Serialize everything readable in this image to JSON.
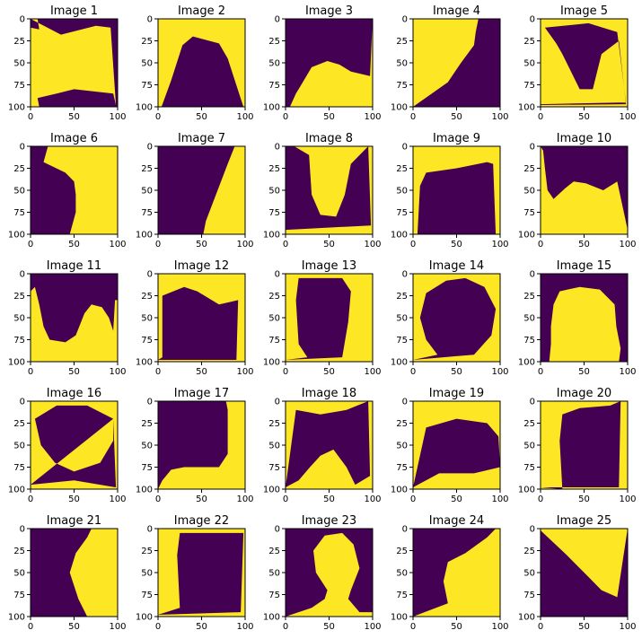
{
  "colors": {
    "low": "#440154",
    "high": "#fde725",
    "axis": "#000000",
    "background": "#ffffff"
  },
  "chart_data": {
    "type": "image-grid",
    "colormap": "viridis",
    "rows": 5,
    "cols": 5,
    "xlim": [
      0,
      100
    ],
    "ylim": [
      100,
      0
    ],
    "xticks": [
      0,
      50,
      100
    ],
    "yticks": [
      0,
      25,
      50,
      75,
      100
    ],
    "grid": false,
    "panels": [
      {
        "title": "Image 1",
        "yellow": [
          [
            0,
            0
          ],
          [
            8,
            0
          ],
          [
            10,
            12
          ],
          [
            0,
            10
          ],
          [
            0,
            100
          ],
          [
            10,
            100
          ],
          [
            8,
            90
          ],
          [
            30,
            85
          ],
          [
            50,
            80
          ],
          [
            95,
            85
          ],
          [
            98,
            98
          ],
          [
            92,
            10
          ],
          [
            75,
            8
          ],
          [
            35,
            18
          ]
        ]
      },
      {
        "title": "Image 2",
        "yellow": [
          [
            0,
            0
          ],
          [
            100,
            0
          ],
          [
            100,
            100
          ],
          [
            98,
            100
          ],
          [
            80,
            45
          ],
          [
            70,
            28
          ],
          [
            40,
            20
          ],
          [
            28,
            30
          ],
          [
            15,
            70
          ],
          [
            4,
            100
          ],
          [
            0,
            100
          ]
        ]
      },
      {
        "title": "Image 3",
        "yellow": [
          [
            5,
            100
          ],
          [
            12,
            85
          ],
          [
            18,
            75
          ],
          [
            30,
            55
          ],
          [
            48,
            48
          ],
          [
            62,
            52
          ],
          [
            75,
            60
          ],
          [
            97,
            65
          ],
          [
            100,
            0
          ],
          [
            100,
            100
          ]
        ]
      },
      {
        "title": "Image 4",
        "yellow": [
          [
            0,
            0
          ],
          [
            75,
            0
          ],
          [
            72,
            15
          ],
          [
            70,
            30
          ],
          [
            55,
            50
          ],
          [
            40,
            72
          ],
          [
            0,
            100
          ]
        ]
      },
      {
        "title": "Image 5",
        "yellow": [
          [
            0,
            0
          ],
          [
            100,
            0
          ],
          [
            100,
            100
          ],
          [
            0,
            100
          ],
          [
            0,
            97
          ],
          [
            98,
            95
          ],
          [
            88,
            15
          ],
          [
            55,
            5
          ],
          [
            5,
            10
          ],
          [
            18,
            28
          ],
          [
            25,
            40
          ],
          [
            45,
            80
          ],
          [
            60,
            80
          ],
          [
            70,
            40
          ],
          [
            90,
            25
          ],
          [
            98,
            97
          ],
          [
            0,
            98
          ]
        ]
      },
      {
        "title": "Image 6",
        "yellow": [
          [
            0,
            0
          ],
          [
            100,
            0
          ],
          [
            100,
            100
          ],
          [
            45,
            100
          ],
          [
            52,
            75
          ],
          [
            52,
            55
          ],
          [
            50,
            40
          ],
          [
            40,
            30
          ],
          [
            15,
            18
          ],
          [
            20,
            0
          ]
        ]
      },
      {
        "title": "Image 7",
        "yellow": [
          [
            100,
            0
          ],
          [
            100,
            100
          ],
          [
            52,
            100
          ],
          [
            55,
            85
          ],
          [
            80,
            20
          ],
          [
            88,
            0
          ]
        ]
      },
      {
        "title": "Image 8",
        "yellow": [
          [
            0,
            0
          ],
          [
            100,
            0
          ],
          [
            100,
            100
          ],
          [
            0,
            100
          ],
          [
            0,
            95
          ],
          [
            98,
            90
          ],
          [
            95,
            0
          ],
          [
            75,
            20
          ],
          [
            68,
            55
          ],
          [
            58,
            80
          ],
          [
            40,
            78
          ],
          [
            30,
            55
          ],
          [
            27,
            10
          ],
          [
            10,
            0
          ]
        ]
      },
      {
        "title": "Image 9",
        "yellow": [
          [
            0,
            0
          ],
          [
            100,
            0
          ],
          [
            100,
            100
          ],
          [
            95,
            100
          ],
          [
            92,
            20
          ],
          [
            85,
            18
          ],
          [
            50,
            25
          ],
          [
            15,
            30
          ],
          [
            8,
            45
          ],
          [
            5,
            100
          ],
          [
            0,
            100
          ]
        ]
      },
      {
        "title": "Image 10",
        "yellow": [
          [
            0,
            0
          ],
          [
            3,
            5
          ],
          [
            5,
            25
          ],
          [
            8,
            50
          ],
          [
            15,
            60
          ],
          [
            28,
            48
          ],
          [
            38,
            40
          ],
          [
            52,
            42
          ],
          [
            72,
            50
          ],
          [
            88,
            40
          ],
          [
            100,
            95
          ],
          [
            100,
            100
          ],
          [
            0,
            100
          ]
        ]
      },
      {
        "title": "Image 11",
        "yellow": [
          [
            0,
            100
          ],
          [
            0,
            20
          ],
          [
            5,
            15
          ],
          [
            10,
            35
          ],
          [
            15,
            60
          ],
          [
            22,
            75
          ],
          [
            40,
            78
          ],
          [
            52,
            70
          ],
          [
            62,
            45
          ],
          [
            70,
            35
          ],
          [
            82,
            38
          ],
          [
            90,
            50
          ],
          [
            95,
            65
          ],
          [
            97,
            30
          ],
          [
            100,
            30
          ],
          [
            100,
            100
          ]
        ]
      },
      {
        "title": "Image 12",
        "yellow": [
          [
            0,
            0
          ],
          [
            100,
            0
          ],
          [
            100,
            100
          ],
          [
            0,
            100
          ],
          [
            0,
            98
          ],
          [
            90,
            98
          ],
          [
            92,
            30
          ],
          [
            70,
            35
          ],
          [
            45,
            20
          ],
          [
            30,
            15
          ],
          [
            5,
            25
          ],
          [
            5,
            95
          ],
          [
            0,
            98
          ]
        ]
      },
      {
        "title": "Image 13",
        "yellow": [
          [
            0,
            0
          ],
          [
            100,
            0
          ],
          [
            100,
            100
          ],
          [
            0,
            100
          ],
          [
            0,
            98
          ],
          [
            65,
            95
          ],
          [
            72,
            55
          ],
          [
            75,
            20
          ],
          [
            65,
            5
          ],
          [
            15,
            5
          ],
          [
            12,
            30
          ],
          [
            15,
            80
          ],
          [
            25,
            95
          ],
          [
            0,
            98
          ]
        ]
      },
      {
        "title": "Image 14",
        "yellow": [
          [
            0,
            0
          ],
          [
            100,
            0
          ],
          [
            100,
            100
          ],
          [
            0,
            100
          ],
          [
            0,
            98
          ],
          [
            35,
            95
          ],
          [
            70,
            92
          ],
          [
            90,
            70
          ],
          [
            95,
            40
          ],
          [
            82,
            15
          ],
          [
            60,
            5
          ],
          [
            38,
            8
          ],
          [
            15,
            22
          ],
          [
            8,
            50
          ],
          [
            15,
            75
          ],
          [
            28,
            92
          ],
          [
            0,
            98
          ]
        ]
      },
      {
        "title": "Image 15",
        "yellow": [
          [
            10,
            100
          ],
          [
            12,
            80
          ],
          [
            12,
            60
          ],
          [
            15,
            35
          ],
          [
            22,
            20
          ],
          [
            45,
            15
          ],
          [
            68,
            18
          ],
          [
            85,
            35
          ],
          [
            87,
            60
          ],
          [
            92,
            85
          ],
          [
            90,
            100
          ]
        ]
      },
      {
        "title": "Image 16",
        "yellow": [
          [
            0,
            0
          ],
          [
            100,
            0
          ],
          [
            100,
            100
          ],
          [
            0,
            100
          ],
          [
            0,
            95
          ],
          [
            50,
            90
          ],
          [
            98,
            98
          ],
          [
            95,
            20
          ],
          [
            65,
            5
          ],
          [
            30,
            5
          ],
          [
            5,
            20
          ],
          [
            12,
            50
          ],
          [
            28,
            70
          ],
          [
            50,
            80
          ],
          [
            80,
            70
          ],
          [
            95,
            45
          ],
          [
            95,
            20
          ],
          [
            0,
            95
          ]
        ]
      },
      {
        "title": "Image 17",
        "yellow": [
          [
            78,
            0
          ],
          [
            100,
            0
          ],
          [
            100,
            100
          ],
          [
            0,
            100
          ],
          [
            5,
            90
          ],
          [
            15,
            78
          ],
          [
            30,
            75
          ],
          [
            70,
            75
          ],
          [
            80,
            60
          ],
          [
            80,
            10
          ]
        ]
      },
      {
        "title": "Image 18",
        "yellow": [
          [
            0,
            0
          ],
          [
            100,
            0
          ],
          [
            100,
            100
          ],
          [
            0,
            100
          ],
          [
            0,
            98
          ],
          [
            15,
            90
          ],
          [
            28,
            75
          ],
          [
            40,
            62
          ],
          [
            55,
            55
          ],
          [
            70,
            75
          ],
          [
            80,
            95
          ],
          [
            97,
            85
          ],
          [
            95,
            0
          ],
          [
            70,
            10
          ],
          [
            40,
            15
          ],
          [
            12,
            10
          ],
          [
            0,
            98
          ]
        ]
      },
      {
        "title": "Image 19",
        "yellow": [
          [
            0,
            0
          ],
          [
            100,
            0
          ],
          [
            100,
            100
          ],
          [
            0,
            100
          ],
          [
            0,
            98
          ],
          [
            30,
            82
          ],
          [
            70,
            82
          ],
          [
            100,
            75
          ],
          [
            98,
            40
          ],
          [
            85,
            25
          ],
          [
            50,
            20
          ],
          [
            15,
            30
          ],
          [
            0,
            98
          ]
        ]
      },
      {
        "title": "Image 20",
        "yellow": [
          [
            0,
            0
          ],
          [
            100,
            0
          ],
          [
            100,
            100
          ],
          [
            0,
            100
          ],
          [
            0,
            98
          ],
          [
            90,
            98
          ],
          [
            92,
            0
          ],
          [
            80,
            5
          ],
          [
            45,
            8
          ],
          [
            25,
            15
          ],
          [
            22,
            45
          ],
          [
            25,
            100
          ],
          [
            0,
            98
          ]
        ]
      },
      {
        "title": "Image 21",
        "yellow": [
          [
            100,
            0
          ],
          [
            100,
            100
          ],
          [
            65,
            100
          ],
          [
            55,
            80
          ],
          [
            45,
            50
          ],
          [
            52,
            28
          ],
          [
            65,
            10
          ],
          [
            70,
            0
          ]
        ]
      },
      {
        "title": "Image 22",
        "yellow": [
          [
            0,
            0
          ],
          [
            100,
            0
          ],
          [
            100,
            100
          ],
          [
            0,
            100
          ],
          [
            0,
            98
          ],
          [
            95,
            95
          ],
          [
            98,
            5
          ],
          [
            50,
            5
          ],
          [
            25,
            5
          ],
          [
            22,
            30
          ],
          [
            25,
            90
          ],
          [
            0,
            98
          ]
        ]
      },
      {
        "title": "Image 23",
        "yellow": [
          [
            0,
            100
          ],
          [
            30,
            90
          ],
          [
            45,
            80
          ],
          [
            48,
            70
          ],
          [
            35,
            50
          ],
          [
            32,
            25
          ],
          [
            45,
            8
          ],
          [
            65,
            5
          ],
          [
            78,
            18
          ],
          [
            85,
            45
          ],
          [
            75,
            70
          ],
          [
            72,
            80
          ],
          [
            85,
            95
          ],
          [
            100,
            95
          ],
          [
            100,
            100
          ]
        ]
      },
      {
        "title": "Image 24",
        "yellow": [
          [
            0,
            100
          ],
          [
            40,
            85
          ],
          [
            35,
            60
          ],
          [
            40,
            38
          ],
          [
            60,
            28
          ],
          [
            85,
            10
          ],
          [
            95,
            0
          ],
          [
            100,
            0
          ],
          [
            100,
            100
          ]
        ]
      },
      {
        "title": "Image 25",
        "yellow": [
          [
            0,
            0
          ],
          [
            100,
            0
          ],
          [
            88,
            78
          ],
          [
            70,
            70
          ],
          [
            55,
            55
          ],
          [
            30,
            30
          ],
          [
            0,
            2
          ]
        ]
      }
    ]
  }
}
